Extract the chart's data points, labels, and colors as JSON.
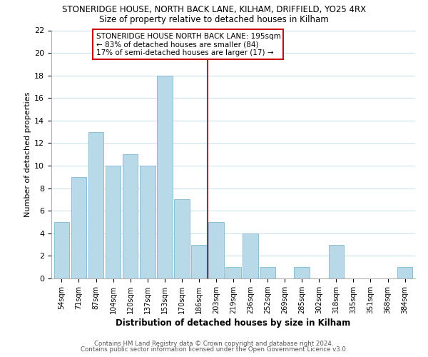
{
  "title": "STONERIDGE HOUSE, NORTH BACK LANE, KILHAM, DRIFFIELD, YO25 4RX",
  "subtitle": "Size of property relative to detached houses in Kilham",
  "xlabel": "Distribution of detached houses by size in Kilham",
  "ylabel": "Number of detached properties",
  "bar_color": "#b8d9e8",
  "bar_edge_color": "#7fb8d4",
  "categories": [
    "54sqm",
    "71sqm",
    "87sqm",
    "104sqm",
    "120sqm",
    "137sqm",
    "153sqm",
    "170sqm",
    "186sqm",
    "203sqm",
    "219sqm",
    "236sqm",
    "252sqm",
    "269sqm",
    "285sqm",
    "302sqm",
    "318sqm",
    "335sqm",
    "351sqm",
    "368sqm",
    "384sqm"
  ],
  "values": [
    5,
    9,
    13,
    10,
    11,
    10,
    18,
    7,
    3,
    5,
    1,
    4,
    1,
    0,
    1,
    0,
    3,
    0,
    0,
    0,
    1
  ],
  "vline_x": 8.5,
  "vline_color": "#cc0000",
  "annotation_line1": "STONERIDGE HOUSE NORTH BACK LANE: 195sqm",
  "annotation_line2": "← 83% of detached houses are smaller (84)",
  "annotation_line3": "17% of semi-detached houses are larger (17) →",
  "ylim": [
    0,
    22
  ],
  "yticks": [
    0,
    2,
    4,
    6,
    8,
    10,
    12,
    14,
    16,
    18,
    20,
    22
  ],
  "footer1": "Contains HM Land Registry data © Crown copyright and database right 2024.",
  "footer2": "Contains public sector information licensed under the Open Government Licence v3.0.",
  "background_color": "#ffffff",
  "grid_color": "#cce0ec"
}
